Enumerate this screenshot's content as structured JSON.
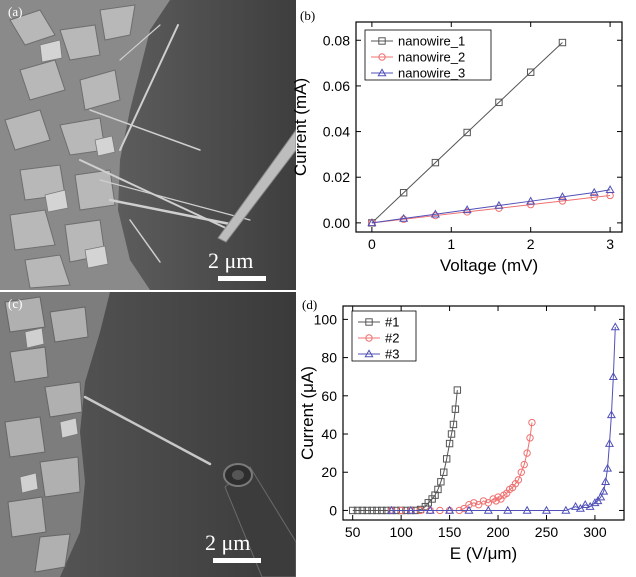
{
  "figure": {
    "panels": {
      "a": {
        "label": "(a)",
        "scale_text": "2 μm"
      },
      "b": {
        "label": "(b)"
      },
      "c": {
        "label": "(c)",
        "scale_text": "2 μm"
      },
      "d": {
        "label": "(d)"
      }
    },
    "colors": {
      "black_series": "#555555",
      "red_series": "#f07070",
      "blue_series": "#5050b8"
    }
  },
  "chart_data": [
    {
      "panel": "b",
      "type": "line",
      "xlabel": "Voltage (mV)",
      "ylabel": "Current (mA)",
      "xlim": [
        -0.2,
        3.15
      ],
      "ylim": [
        -0.004,
        0.088
      ],
      "xticks": [
        0,
        1,
        2,
        3
      ],
      "yticks": [
        0.0,
        0.02,
        0.04,
        0.06,
        0.08
      ],
      "ytick_labels": [
        "0.00",
        "0.02",
        "0.04",
        "0.06",
        "0.08"
      ],
      "grid": false,
      "legend": "top-left",
      "series": [
        {
          "name": "nanowire_1",
          "marker": "square",
          "color": "#555555",
          "x": [
            0,
            0.4,
            0.8,
            1.2,
            1.6,
            2.0,
            2.4
          ],
          "y": [
            0,
            0.0132,
            0.0264,
            0.0396,
            0.0528,
            0.066,
            0.079
          ]
        },
        {
          "name": "nanowire_2",
          "marker": "circle",
          "color": "#f07070",
          "x": [
            0,
            0.4,
            0.8,
            1.2,
            1.6,
            2.0,
            2.4,
            2.8,
            3.0
          ],
          "y": [
            0,
            0.0016,
            0.0032,
            0.0048,
            0.0064,
            0.008,
            0.0096,
            0.0112,
            0.012
          ]
        },
        {
          "name": "nanowire_3",
          "marker": "triangle",
          "color": "#5050b8",
          "x": [
            0,
            0.4,
            0.8,
            1.2,
            1.6,
            2.0,
            2.4,
            2.8,
            3.0
          ],
          "y": [
            0,
            0.0019,
            0.0038,
            0.0057,
            0.0076,
            0.0095,
            0.0114,
            0.0133,
            0.0145
          ]
        }
      ]
    },
    {
      "panel": "d",
      "type": "line",
      "xlabel": "E (V/μm)",
      "ylabel": "Current (μA)",
      "xlim": [
        40,
        330
      ],
      "ylim": [
        -5,
        107
      ],
      "xticks": [
        50,
        100,
        150,
        200,
        250,
        300
      ],
      "yticks": [
        0,
        20,
        40,
        60,
        80,
        100
      ],
      "ytick_labels": [
        "0",
        "20",
        "40",
        "60",
        "80",
        "100"
      ],
      "grid": false,
      "legend": "top-left",
      "series": [
        {
          "name": "#1",
          "marker": "square",
          "color": "#555555",
          "x": [
            50,
            55,
            60,
            65,
            70,
            75,
            80,
            85,
            90,
            95,
            100,
            105,
            110,
            115,
            120,
            125,
            128,
            132,
            135,
            138,
            141,
            144,
            147,
            150,
            152,
            154,
            156,
            158
          ],
          "y": [
            0,
            0,
            0,
            0,
            0,
            0,
            0,
            0,
            0,
            0,
            0,
            0,
            0,
            0,
            0.5,
            2,
            4,
            6,
            8,
            11,
            15,
            20,
            27,
            35,
            40,
            45,
            53,
            63
          ]
        },
        {
          "name": "#2",
          "marker": "circle",
          "color": "#f07070",
          "x": [
            90,
            100,
            110,
            120,
            130,
            140,
            150,
            160,
            165,
            170,
            175,
            180,
            185,
            190,
            195,
            198,
            200,
            203,
            206,
            209,
            212,
            215,
            218,
            221,
            224,
            227,
            230,
            233,
            235
          ],
          "y": [
            0,
            0,
            0,
            0,
            0,
            0,
            0,
            0,
            1,
            3,
            4,
            3,
            5,
            4,
            6,
            5,
            7,
            6,
            8,
            9,
            11,
            12,
            14,
            16,
            20,
            24,
            30,
            38,
            46
          ]
        },
        {
          "name": "#3",
          "marker": "triangle",
          "color": "#5050b8",
          "x": [
            90,
            110,
            130,
            150,
            170,
            190,
            210,
            230,
            250,
            270,
            280,
            285,
            290,
            295,
            300,
            303,
            306,
            309,
            311,
            313,
            315,
            317,
            319,
            321
          ],
          "y": [
            0,
            0,
            0,
            0,
            0,
            0,
            0,
            0,
            0,
            0,
            2,
            1,
            3,
            2,
            4,
            5,
            7,
            10,
            15,
            22,
            35,
            50,
            70,
            96
          ]
        }
      ]
    }
  ]
}
